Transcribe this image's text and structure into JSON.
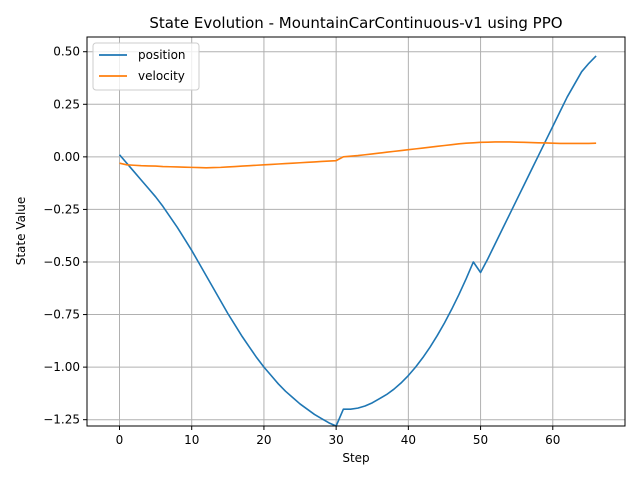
{
  "chart_data": {
    "type": "line",
    "title": "State Evolution - MountainCarContinuous-v1 using PPO",
    "xlabel": "Step",
    "ylabel": "State Value",
    "xlim": [
      -4.5,
      70
    ],
    "ylim": [
      -1.28,
      0.57
    ],
    "xticks": [
      0,
      10,
      20,
      30,
      40,
      50,
      60
    ],
    "xtick_labels": [
      "0",
      "10",
      "20",
      "30",
      "40",
      "50",
      "60"
    ],
    "yticks": [
      0.5,
      0.25,
      0.0,
      -0.25,
      -0.5,
      -0.75,
      -1.0,
      -1.25
    ],
    "ytick_labels": [
      "0.50",
      "0.25",
      "0.00",
      "−0.25",
      "−0.50",
      "−0.75",
      "−1.00",
      "−1.25"
    ],
    "grid": true,
    "legend_position": "top-left",
    "series": [
      {
        "name": "position",
        "color": "#1f77b4",
        "points": [
          [
            0,
            0.01
          ],
          [
            1,
            -0.03
          ],
          [
            2,
            -0.07
          ],
          [
            3,
            -0.11
          ],
          [
            4,
            -0.15
          ],
          [
            5,
            -0.19
          ],
          [
            6,
            -0.235
          ],
          [
            7,
            -0.285
          ],
          [
            8,
            -0.335
          ],
          [
            9,
            -0.39
          ],
          [
            10,
            -0.445
          ],
          [
            11,
            -0.505
          ],
          [
            12,
            -0.565
          ],
          [
            13,
            -0.625
          ],
          [
            14,
            -0.685
          ],
          [
            15,
            -0.745
          ],
          [
            16,
            -0.8
          ],
          [
            17,
            -0.855
          ],
          [
            18,
            -0.905
          ],
          [
            19,
            -0.955
          ],
          [
            20,
            -1.0
          ],
          [
            21,
            -1.04
          ],
          [
            22,
            -1.08
          ],
          [
            23,
            -1.115
          ],
          [
            24,
            -1.145
          ],
          [
            25,
            -1.175
          ],
          [
            26,
            -1.2
          ],
          [
            27,
            -1.225
          ],
          [
            28,
            -1.245
          ],
          [
            29,
            -1.265
          ],
          [
            30,
            -1.28
          ],
          [
            31,
            -1.2
          ],
          [
            32,
            -1.2
          ],
          [
            33,
            -1.195
          ],
          [
            34,
            -1.185
          ],
          [
            35,
            -1.17
          ],
          [
            36,
            -1.15
          ],
          [
            37,
            -1.13
          ],
          [
            38,
            -1.105
          ],
          [
            39,
            -1.075
          ],
          [
            40,
            -1.04
          ],
          [
            41,
            -1.0
          ],
          [
            42,
            -0.955
          ],
          [
            43,
            -0.905
          ],
          [
            44,
            -0.85
          ],
          [
            45,
            -0.79
          ],
          [
            46,
            -0.725
          ],
          [
            47,
            -0.655
          ],
          [
            48,
            -0.58
          ],
          [
            49,
            -0.5
          ],
          [
            50,
            -0.55
          ],
          [
            51,
            -0.485
          ],
          [
            52,
            -0.415
          ],
          [
            53,
            -0.345
          ],
          [
            54,
            -0.275
          ],
          [
            55,
            -0.205
          ],
          [
            56,
            -0.135
          ],
          [
            57,
            -0.065
          ],
          [
            58,
            0.005
          ],
          [
            59,
            0.075
          ],
          [
            60,
            0.145
          ],
          [
            61,
            0.215
          ],
          [
            62,
            0.285
          ],
          [
            63,
            0.345
          ],
          [
            64,
            0.405
          ],
          [
            65,
            0.445
          ],
          [
            66,
            0.48
          ]
        ]
      },
      {
        "name": "velocity",
        "color": "#ff7f0e",
        "points": [
          [
            0,
            -0.03
          ],
          [
            1,
            -0.038
          ],
          [
            2,
            -0.04
          ],
          [
            3,
            -0.042
          ],
          [
            4,
            -0.043
          ],
          [
            5,
            -0.044
          ],
          [
            6,
            -0.046
          ],
          [
            7,
            -0.047
          ],
          [
            8,
            -0.048
          ],
          [
            9,
            -0.049
          ],
          [
            10,
            -0.05
          ],
          [
            11,
            -0.051
          ],
          [
            12,
            -0.052
          ],
          [
            13,
            -0.051
          ],
          [
            14,
            -0.05
          ],
          [
            15,
            -0.048
          ],
          [
            16,
            -0.046
          ],
          [
            17,
            -0.044
          ],
          [
            18,
            -0.042
          ],
          [
            19,
            -0.04
          ],
          [
            20,
            -0.038
          ],
          [
            21,
            -0.036
          ],
          [
            22,
            -0.034
          ],
          [
            23,
            -0.032
          ],
          [
            24,
            -0.03
          ],
          [
            25,
            -0.028
          ],
          [
            26,
            -0.026
          ],
          [
            27,
            -0.024
          ],
          [
            28,
            -0.022
          ],
          [
            29,
            -0.02
          ],
          [
            30,
            -0.018
          ],
          [
            31,
            0.0
          ],
          [
            32,
            0.003
          ],
          [
            33,
            0.006
          ],
          [
            34,
            0.01
          ],
          [
            35,
            0.014
          ],
          [
            36,
            0.018
          ],
          [
            37,
            0.022
          ],
          [
            38,
            0.026
          ],
          [
            39,
            0.03
          ],
          [
            40,
            0.034
          ],
          [
            41,
            0.038
          ],
          [
            42,
            0.042
          ],
          [
            43,
            0.046
          ],
          [
            44,
            0.05
          ],
          [
            45,
            0.054
          ],
          [
            46,
            0.058
          ],
          [
            47,
            0.062
          ],
          [
            48,
            0.065
          ],
          [
            49,
            0.067
          ],
          [
            50,
            0.069
          ],
          [
            51,
            0.07
          ],
          [
            52,
            0.071
          ],
          [
            53,
            0.071
          ],
          [
            54,
            0.071
          ],
          [
            55,
            0.07
          ],
          [
            56,
            0.069
          ],
          [
            57,
            0.068
          ],
          [
            58,
            0.067
          ],
          [
            59,
            0.066
          ],
          [
            60,
            0.065
          ],
          [
            61,
            0.064
          ],
          [
            62,
            0.064
          ],
          [
            63,
            0.064
          ],
          [
            64,
            0.064
          ],
          [
            65,
            0.064
          ],
          [
            66,
            0.065
          ]
        ]
      }
    ]
  }
}
